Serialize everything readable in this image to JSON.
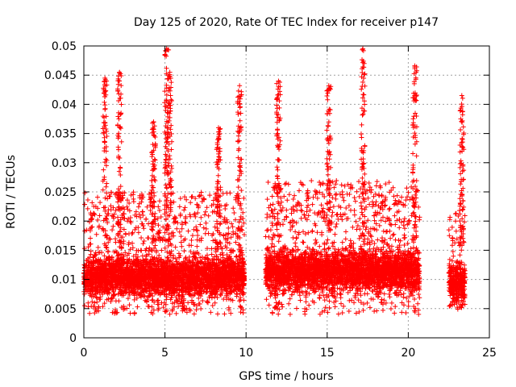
{
  "chart_data": {
    "type": "scatter",
    "title": "Day 125 of 2020, Rate Of TEC Index for receiver p147",
    "xlabel": "GPS time / hours",
    "ylabel": "ROTI / TECUs",
    "xlim": [
      0,
      25
    ],
    "ylim": [
      0,
      0.05
    ],
    "xticks": [
      0,
      5,
      10,
      15,
      20,
      25
    ],
    "yticks": [
      0,
      0.005,
      0.01,
      0.015,
      0.02,
      0.025,
      0.03,
      0.035,
      0.04,
      0.045,
      0.05
    ],
    "xtick_labels": [
      "0",
      "5",
      "10",
      "15",
      "20",
      "25"
    ],
    "ytick_labels": [
      "0",
      "0.005",
      "0.01",
      "0.015",
      "0.02",
      "0.025",
      "0.03",
      "0.035",
      "0.04",
      "0.045",
      "0.05"
    ],
    "grid": true,
    "marker": "+",
    "color": "#ff0000",
    "series": [
      {
        "name": "ROTI",
        "note": "dense scatter; segments give observed time coverage and typical value range",
        "segments": [
          {
            "start": 0.0,
            "end": 9.9,
            "typical_min": 0.004,
            "typical_max": 0.025
          },
          {
            "start": 11.2,
            "end": 20.7,
            "typical_min": 0.004,
            "typical_max": 0.027
          },
          {
            "start": 22.5,
            "end": 23.5,
            "typical_min": 0.005,
            "typical_max": 0.022
          }
        ],
        "peaks": [
          {
            "x": 1.3,
            "y": 0.0445
          },
          {
            "x": 2.2,
            "y": 0.0455
          },
          {
            "x": 5.1,
            "y": 0.0495
          },
          {
            "x": 5.3,
            "y": 0.0455
          },
          {
            "x": 4.3,
            "y": 0.037
          },
          {
            "x": 8.3,
            "y": 0.036
          },
          {
            "x": 9.6,
            "y": 0.0432
          },
          {
            "x": 12.0,
            "y": 0.044
          },
          {
            "x": 15.1,
            "y": 0.0432
          },
          {
            "x": 17.2,
            "y": 0.0495
          },
          {
            "x": 20.4,
            "y": 0.0466
          },
          {
            "x": 23.3,
            "y": 0.0415
          }
        ]
      }
    ]
  }
}
